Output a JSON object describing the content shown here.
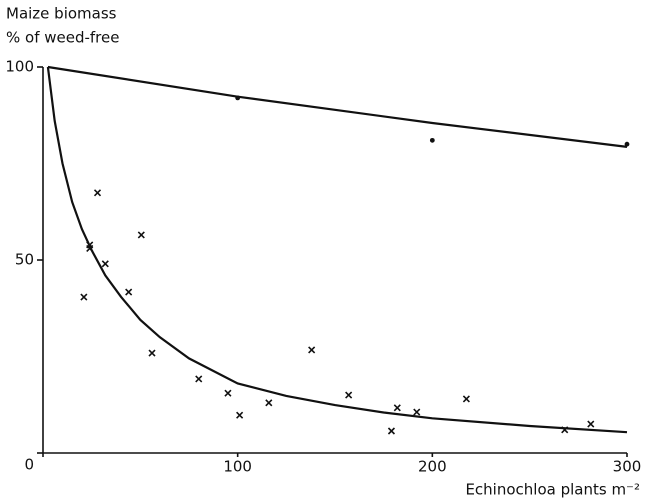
{
  "chart_data": {
    "type": "scatter",
    "ylabel": [
      "Maize biomass",
      "% of weed-free"
    ],
    "xlabel": "Echinochloa plants m⁻²",
    "xlim": [
      0,
      300
    ],
    "ylim": [
      0,
      100
    ],
    "xticks": [
      0,
      100,
      200,
      300
    ],
    "yticks": [
      0,
      50,
      100
    ],
    "grid": false,
    "series": [
      {
        "marker": "dot",
        "color": "#111",
        "x": [
          100,
          200,
          300
        ],
        "values": [
          92,
          81,
          80
        ]
      },
      {
        "marker": "cross",
        "color": "#111",
        "x": [
          21,
          24,
          24,
          28,
          32,
          44,
          50.5,
          56,
          80,
          95,
          101,
          116,
          138,
          157,
          179,
          182,
          192,
          217.5,
          268,
          281.4
        ],
        "values": [
          40.4,
          53.9,
          53,
          67.4,
          49,
          41.7,
          56.5,
          25.9,
          19.2,
          15.5,
          9.8,
          13,
          26.7,
          15,
          5.7,
          11.7,
          10.6,
          14,
          6,
          7.5
        ]
      },
      {
        "marker": "line",
        "color": "#111",
        "x": [
          2.5,
          100,
          200,
          300
        ],
        "values": [
          100,
          92.3,
          85.5,
          79.3
        ]
      },
      {
        "marker": "line",
        "color": "#111",
        "x": [
          2.5,
          6,
          10,
          15,
          20,
          25,
          32,
          40,
          50,
          60,
          75,
          100,
          125,
          150,
          175,
          200,
          250,
          300
        ],
        "values": [
          100,
          86,
          75,
          65,
          58,
          52.5,
          46,
          40.5,
          34.5,
          30,
          24.5,
          18,
          14.8,
          12.4,
          10.5,
          9,
          7,
          5.4
        ]
      }
    ]
  }
}
